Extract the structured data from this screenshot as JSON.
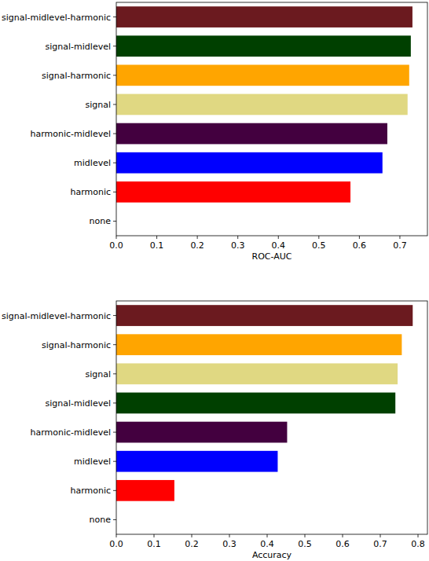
{
  "chart_data": [
    {
      "type": "bar",
      "orientation": "horizontal",
      "categories": [
        "signal-midlevel-harmonic",
        "signal-midlevel",
        "signal-harmonic",
        "signal",
        "harmonic-midlevel",
        "midlevel",
        "harmonic",
        "none"
      ],
      "values": [
        0.731,
        0.727,
        0.723,
        0.719,
        0.669,
        0.657,
        0.578,
        0
      ],
      "colors": [
        "#6b1a1f",
        "#004000",
        "#ffa500",
        "#e0d882",
        "#43003f",
        "#0000ff",
        "#ff0000",
        "#888888"
      ],
      "xlim": [
        0,
        0.768
      ],
      "xticks": [
        {
          "value": 0,
          "label": "0.0"
        },
        0.1,
        0.2,
        0.3,
        0.4,
        0.5,
        0.6,
        0.7
      ],
      "xlabel": "ROC-AUC"
    },
    {
      "type": "bar",
      "orientation": "horizontal",
      "categories": [
        "signal-midlevel-harmonic",
        "signal-harmonic",
        "signal",
        "signal-midlevel",
        "harmonic-midlevel",
        "midlevel",
        "harmonic",
        "none"
      ],
      "values": [
        0.786,
        0.757,
        0.746,
        0.74,
        0.453,
        0.428,
        0.154,
        0
      ],
      "colors": [
        "#6b1a1f",
        "#ffa500",
        "#e0d882",
        "#004000",
        "#43003f",
        "#0000ff",
        "#ff0000",
        "#888888"
      ],
      "xlim": [
        0,
        0.825
      ],
      "xticks": [
        {
          "value": 0,
          "label": "0.0"
        },
        0.1,
        0.2,
        0.3,
        0.4,
        0.5,
        0.6,
        0.7,
        0.8
      ],
      "xlabel": "Accuracy"
    }
  ]
}
